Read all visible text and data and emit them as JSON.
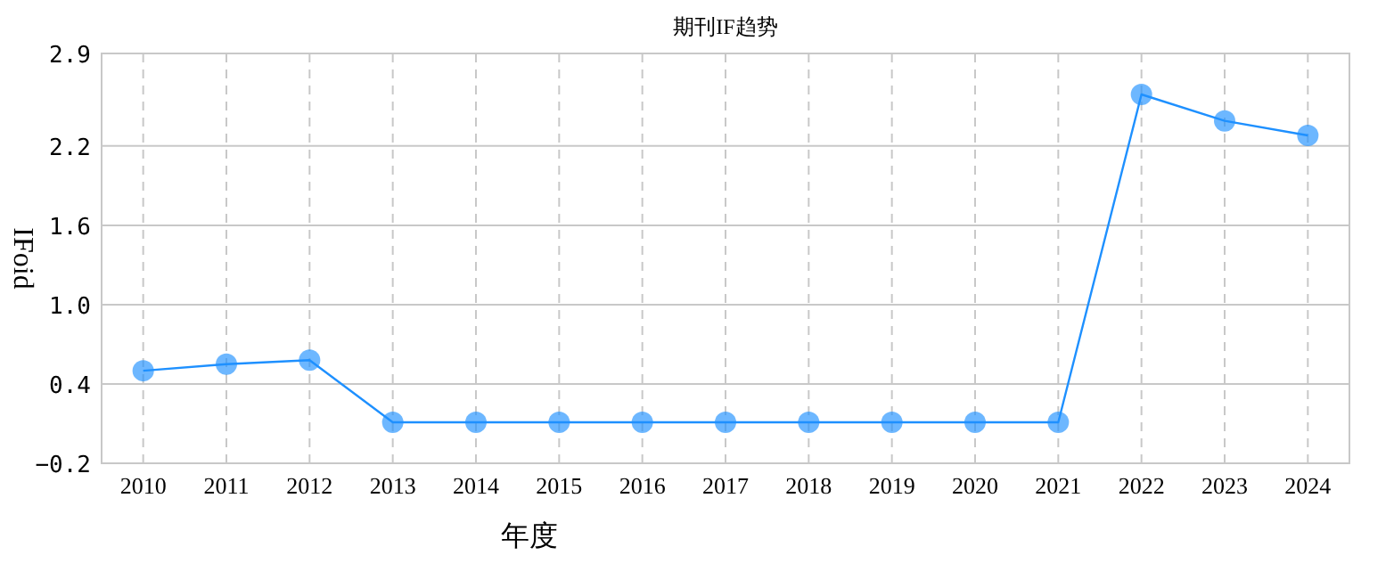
{
  "chart_data": {
    "type": "line",
    "title": "期刊IF趋势",
    "xlabel": "年度",
    "ylabel": "IFoid",
    "categories": [
      "2010",
      "2011",
      "2012",
      "2013",
      "2014",
      "2015",
      "2016",
      "2017",
      "2018",
      "2019",
      "2020",
      "2021",
      "2022",
      "2023",
      "2024"
    ],
    "series": [
      {
        "color": "#1e90ff",
        "values": [
          0.5,
          0.55,
          0.58,
          0.11,
          0.11,
          0.11,
          0.11,
          0.11,
          0.11,
          0.11,
          0.11,
          0.11,
          2.59,
          2.39,
          2.28
        ]
      }
    ],
    "ylim": [
      -0.2,
      2.9
    ],
    "yticks": [
      -0.2,
      0.4,
      {
        "value": 1.0,
        "label": "1.0"
      },
      1.6,
      2.2,
      2.9
    ],
    "grid": true,
    "marker": "circle",
    "line_style": "solid"
  }
}
